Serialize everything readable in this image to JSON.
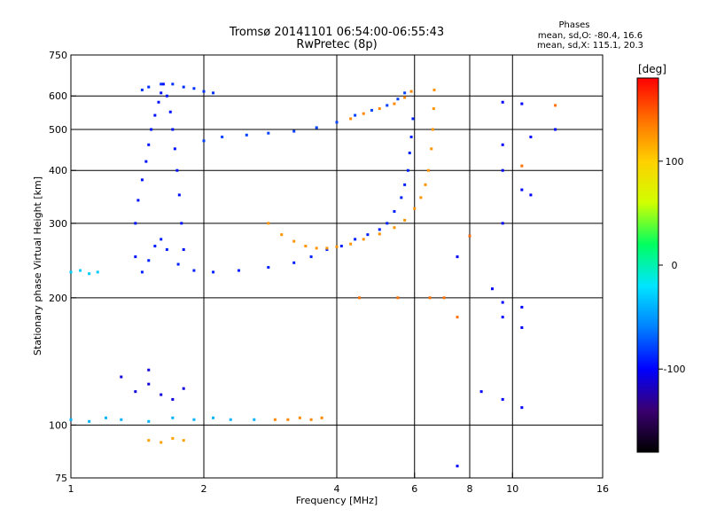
{
  "chart_data": {
    "type": "scatter",
    "title": "Tromsø 20141101 06:54:00-06:55:43",
    "subtitle": "RwPretec (8p)",
    "phase_header": "Phases",
    "phase_stats": [
      "mean, sd,O: -80.4, 16.6",
      "mean, sd,X: 115.1, 20.3"
    ],
    "xlabel": "Frequency [MHz]",
    "ylabel": "Stationary phase Virtual Height [km]",
    "x_scale": "log",
    "y_scale": "log",
    "xlim": [
      1,
      16
    ],
    "ylim": [
      75,
      750
    ],
    "x_ticks": [
      1,
      2,
      4,
      6,
      8,
      10,
      16
    ],
    "x_ticklabels": [
      "1",
      "2",
      "4",
      "6",
      "8",
      "10",
      "16"
    ],
    "y_ticks": [
      75,
      100,
      200,
      300,
      400,
      500,
      600,
      750
    ],
    "y_ticklabels": [
      "75",
      "100",
      "200",
      "300",
      "400",
      "500",
      "600",
      "750"
    ],
    "grid_x": [
      2,
      4,
      6,
      8,
      10
    ],
    "grid_y": [
      100,
      200,
      300,
      400,
      500,
      600
    ],
    "grid": true,
    "colorbar": {
      "unit_label": "[deg]",
      "range": [
        -180,
        180
      ],
      "ticks": [
        100,
        0,
        -100
      ],
      "ticklabels": [
        "100",
        "0",
        "-100"
      ],
      "colors": [
        "#000000",
        "#3a0070",
        "#0000ff",
        "#0080ff",
        "#00e5ff",
        "#00ff60",
        "#d0ff00",
        "#ffd000",
        "#ff7000",
        "#ff0000"
      ]
    },
    "series": [
      {
        "points": [
          [
            1.45,
            230
          ],
          [
            1.5,
            245
          ],
          [
            1.55,
            265
          ],
          [
            1.6,
            275
          ],
          [
            1.65,
            260
          ],
          [
            1.75,
            240
          ],
          [
            1.9,
            232
          ],
          [
            2.1,
            230
          ],
          [
            2.4,
            232
          ],
          [
            2.8,
            236
          ],
          [
            3.2,
            242
          ],
          [
            3.5,
            250
          ],
          [
            3.8,
            260
          ],
          [
            4.1,
            265
          ],
          [
            4.4,
            275
          ],
          [
            4.7,
            282
          ],
          [
            5.0,
            290
          ],
          [
            5.2,
            300
          ],
          [
            5.4,
            320
          ],
          [
            5.6,
            345
          ],
          [
            5.7,
            370
          ],
          [
            5.8,
            400
          ],
          [
            5.85,
            440
          ],
          [
            5.9,
            480
          ],
          [
            5.95,
            530
          ]
        ],
        "phase": -90
      },
      {
        "points": [
          [
            2.0,
            470
          ],
          [
            2.2,
            480
          ],
          [
            2.5,
            485
          ],
          [
            2.8,
            490
          ],
          [
            3.2,
            495
          ],
          [
            3.6,
            505
          ],
          [
            4.0,
            520
          ],
          [
            4.4,
            540
          ],
          [
            4.8,
            555
          ],
          [
            5.2,
            570
          ],
          [
            5.5,
            590
          ],
          [
            5.7,
            610
          ]
        ],
        "phase": -80
      },
      {
        "points": [
          [
            1.45,
            620
          ],
          [
            1.5,
            630
          ],
          [
            1.6,
            640
          ],
          [
            1.7,
            640
          ],
          [
            1.8,
            630
          ],
          [
            1.9,
            625
          ],
          [
            2.0,
            615
          ],
          [
            2.1,
            610
          ]
        ],
        "phase": -85
      },
      {
        "points": [
          [
            1.4,
            250
          ],
          [
            1.4,
            300
          ],
          [
            1.42,
            340
          ],
          [
            1.45,
            380
          ],
          [
            1.48,
            420
          ],
          [
            1.5,
            460
          ],
          [
            1.52,
            500
          ],
          [
            1.55,
            540
          ],
          [
            1.58,
            580
          ],
          [
            1.6,
            610
          ],
          [
            1.62,
            640
          ],
          [
            1.65,
            600
          ],
          [
            1.68,
            550
          ],
          [
            1.7,
            500
          ],
          [
            1.72,
            450
          ],
          [
            1.74,
            400
          ],
          [
            1.76,
            350
          ],
          [
            1.78,
            300
          ],
          [
            1.8,
            260
          ]
        ],
        "phase": -95
      },
      {
        "points": [
          [
            2.8,
            300
          ],
          [
            3.0,
            282
          ],
          [
            3.2,
            272
          ],
          [
            3.4,
            265
          ],
          [
            3.6,
            262
          ],
          [
            3.8,
            262
          ],
          [
            4.0,
            264
          ],
          [
            4.3,
            268
          ],
          [
            4.6,
            275
          ],
          [
            5.0,
            283
          ],
          [
            5.4,
            293
          ],
          [
            5.7,
            305
          ],
          [
            6.0,
            325
          ],
          [
            6.2,
            345
          ],
          [
            6.35,
            370
          ],
          [
            6.45,
            400
          ],
          [
            6.55,
            450
          ],
          [
            6.6,
            500
          ],
          [
            6.63,
            560
          ],
          [
            6.65,
            620
          ]
        ],
        "phase": 125
      },
      {
        "points": [
          [
            4.3,
            530
          ],
          [
            4.6,
            545
          ],
          [
            5.0,
            560
          ],
          [
            5.4,
            575
          ],
          [
            5.7,
            595
          ],
          [
            5.9,
            615
          ]
        ],
        "phase": 130
      },
      {
        "points": [
          [
            1.0,
            103
          ],
          [
            1.1,
            102
          ],
          [
            1.2,
            104
          ],
          [
            1.3,
            103
          ],
          [
            1.5,
            102
          ],
          [
            1.7,
            104
          ],
          [
            1.9,
            103
          ],
          [
            2.1,
            104
          ],
          [
            2.3,
            103
          ],
          [
            2.6,
            103
          ]
        ],
        "phase": -40
      },
      {
        "points": [
          [
            2.9,
            103
          ],
          [
            3.1,
            103
          ],
          [
            3.3,
            104
          ],
          [
            3.5,
            103
          ],
          [
            3.7,
            104
          ]
        ],
        "phase": 130
      },
      {
        "points": [
          [
            1.4,
            120
          ],
          [
            1.5,
            125
          ],
          [
            1.6,
            118
          ],
          [
            1.7,
            115
          ],
          [
            1.8,
            122
          ],
          [
            1.5,
            135
          ],
          [
            1.3,
            130
          ]
        ],
        "phase": -110
      },
      {
        "points": [
          [
            1.0,
            230
          ],
          [
            1.05,
            232
          ],
          [
            1.1,
            228
          ],
          [
            1.15,
            230
          ]
        ],
        "phase": -30
      },
      {
        "points": [
          [
            1.5,
            92
          ],
          [
            1.6,
            91
          ],
          [
            1.7,
            93
          ],
          [
            1.8,
            92
          ]
        ],
        "phase": 120
      },
      {
        "points": [
          [
            9.5,
            580
          ],
          [
            10.5,
            575
          ],
          [
            11.0,
            480
          ],
          [
            9.5,
            460
          ],
          [
            9.5,
            400
          ],
          [
            10.5,
            360
          ],
          [
            12.5,
            500
          ],
          [
            11.0,
            350
          ],
          [
            9.5,
            300
          ],
          [
            8.0,
            280
          ],
          [
            7.5,
            250
          ],
          [
            9.0,
            210
          ],
          [
            9.5,
            195
          ],
          [
            10.5,
            190
          ],
          [
            9.5,
            180
          ],
          [
            10.5,
            170
          ],
          [
            8.5,
            120
          ],
          [
            9.5,
            115
          ],
          [
            10.5,
            110
          ],
          [
            7.5,
            80
          ]
        ],
        "phase": -100
      },
      {
        "points": [
          [
            7.0,
            200
          ],
          [
            8.0,
            280
          ],
          [
            10.5,
            410
          ],
          [
            12.5,
            570
          ],
          [
            7.5,
            180
          ],
          [
            5.5,
            200
          ],
          [
            4.5,
            200
          ],
          [
            6.5,
            200
          ]
        ],
        "phase": 140
      }
    ]
  }
}
